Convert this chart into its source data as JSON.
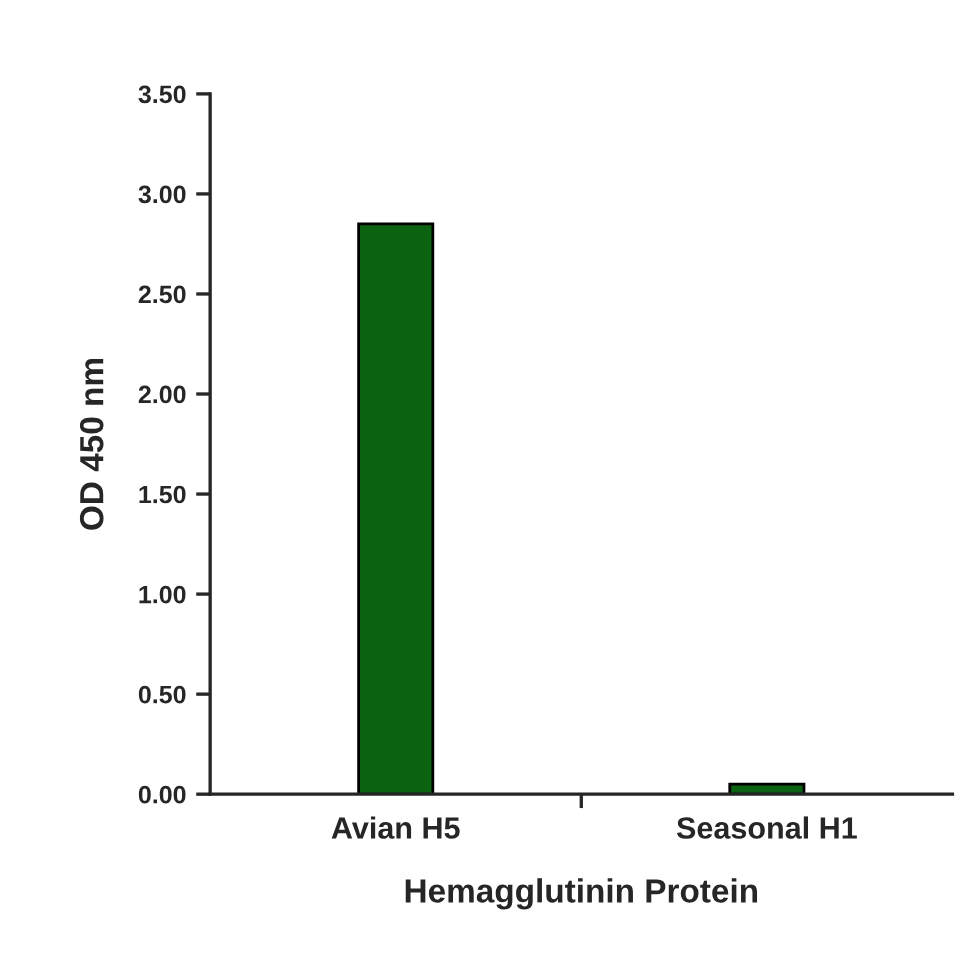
{
  "chart_data": {
    "type": "bar",
    "xlabel": "Hemagglutinin Protein",
    "ylabel": "OD 450 nm",
    "categories": [
      "Avian H5",
      "Seasonal H1"
    ],
    "series": [
      {
        "color": "#0b6312",
        "values": [
          2.85,
          0.05
        ]
      }
    ],
    "ylim": [
      0,
      3.5
    ],
    "yticks": [
      {
        "value": 0,
        "label": "0.00"
      },
      {
        "value": 0.5,
        "label": "0.50"
      },
      {
        "value": 1,
        "label": "1.00"
      },
      {
        "value": 1.5,
        "label": "1.50"
      },
      {
        "value": 2,
        "label": "2.00"
      },
      {
        "value": 2.5,
        "label": "2.50"
      },
      {
        "value": 3,
        "label": "3.00"
      },
      {
        "value": 3.5,
        "label": "3.50"
      }
    ],
    "grid": false,
    "legend": false
  }
}
